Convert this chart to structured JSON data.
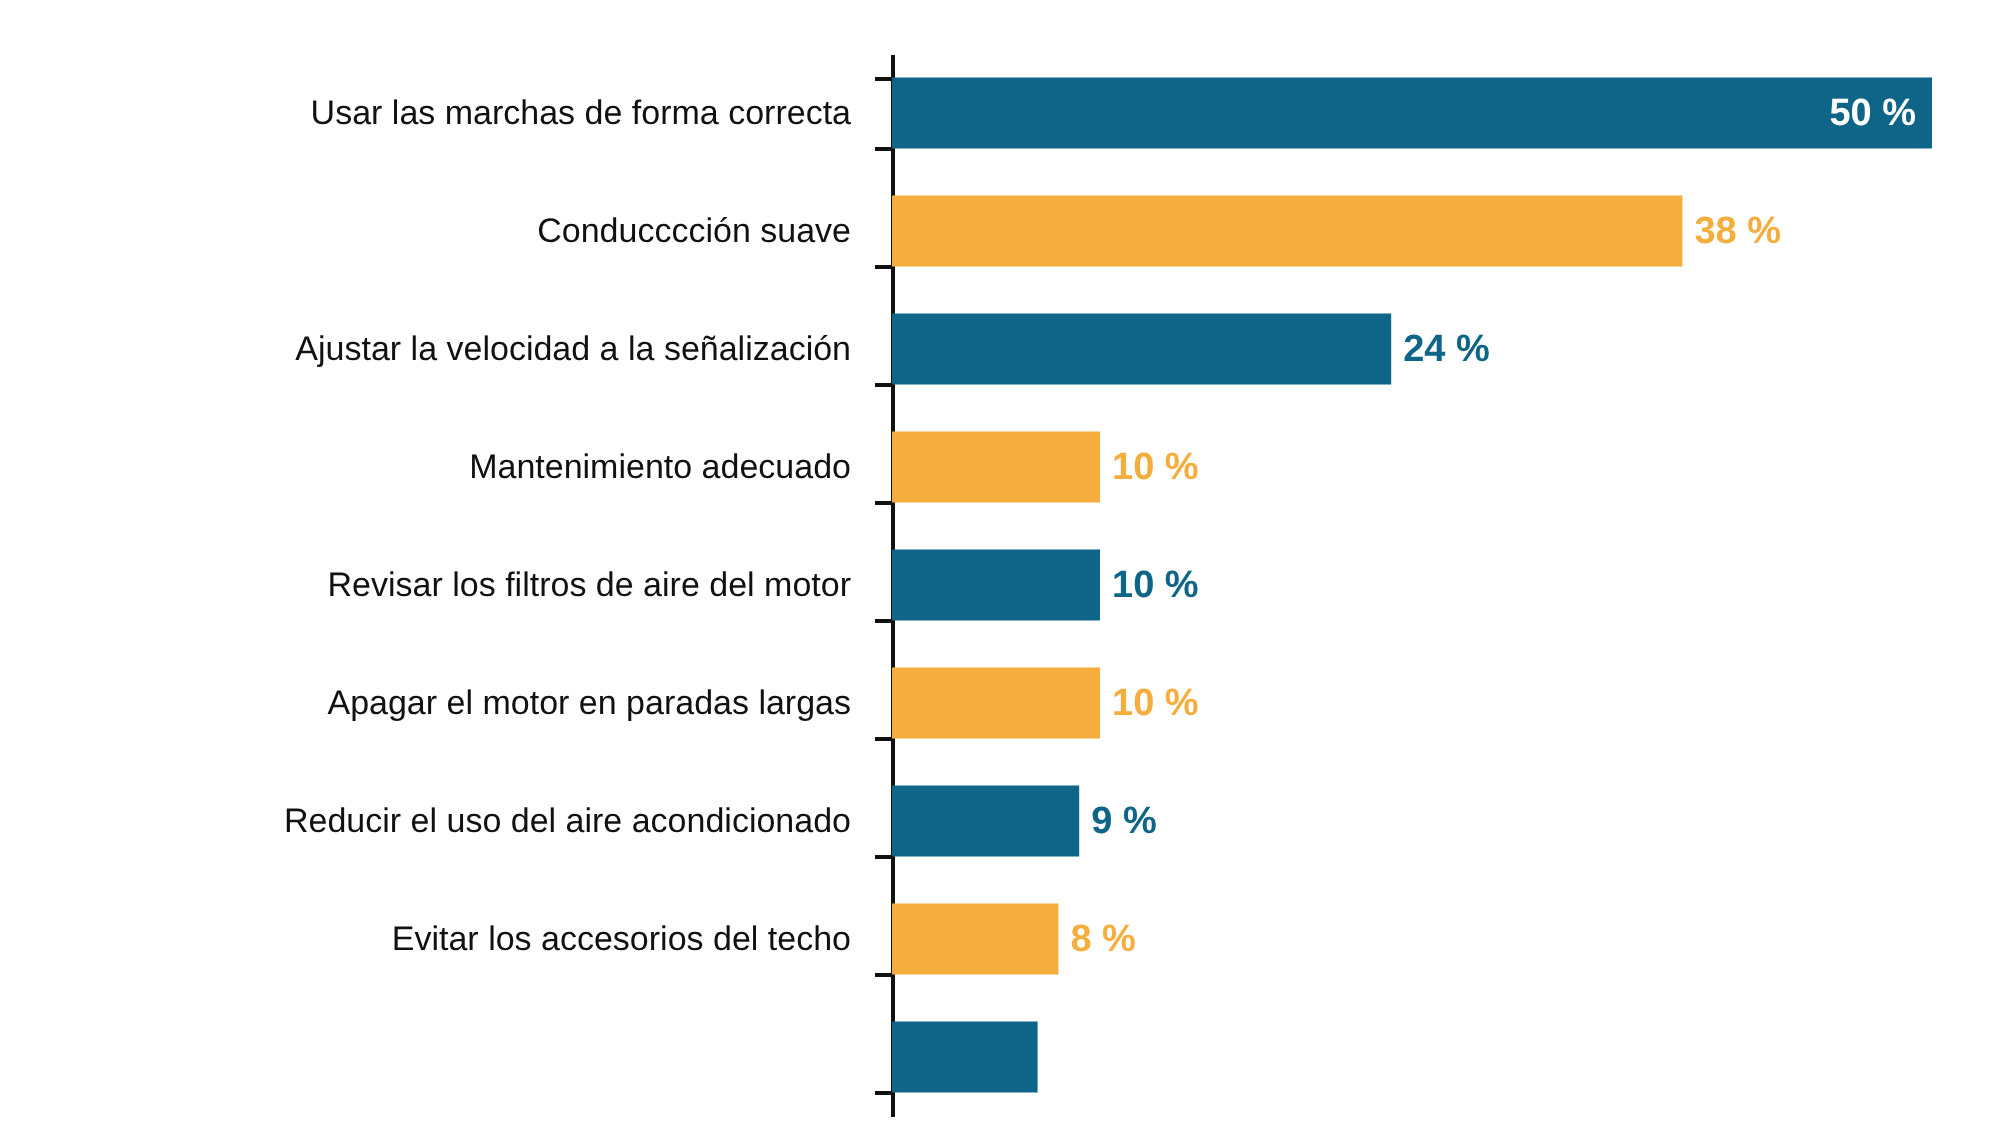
{
  "chart_data": {
    "type": "bar",
    "orientation": "horizontal",
    "categories": [
      "Usar las marchas de forma correcta",
      "Conducccción suave",
      "Ajustar la velocidad a la señalización",
      "Mantenimiento adecuado",
      "Revisar los filtros de aire del motor",
      "Apagar el motor en paradas largas",
      "Reducir el uso del aire acondicionado",
      "Evitar los accesorios del techo",
      null
    ],
    "values": [
      50,
      38,
      24,
      10,
      10,
      10,
      9,
      8,
      7
    ],
    "value_labels": [
      "50 %",
      "38 %",
      "24 %",
      "10 %",
      "10 %",
      "10 %",
      "9 %",
      "8 %",
      null
    ],
    "colors": [
      "#0e6587",
      "#f5ae3d",
      "#0e6587",
      "#f5ae3d",
      "#0e6587",
      "#f5ae3d",
      "#0e6587",
      "#f5ae3d",
      "#0e6587"
    ]
  }
}
